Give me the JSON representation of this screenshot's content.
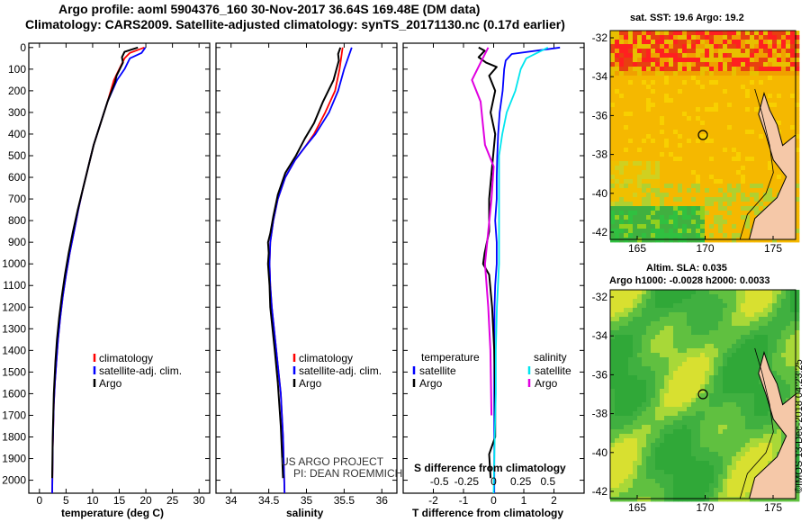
{
  "header": {
    "title_line1": "Argo profile: aoml 5904376_160 30-Nov-2017 36.64S 169.48E (DM data)",
    "title_line2": "Climatology: CARS2009. Satellite-adjusted climatology: synTS_20171130.nc (0.17d earlier)"
  },
  "colors": {
    "climatology": "#ff0000",
    "satellite": "#0000ff",
    "argo": "#000000",
    "sat_salinity": "#00e5ee",
    "argo_salinity": "#e000e0"
  },
  "chart_data": [
    {
      "type": "line",
      "id": "temperature",
      "xlabel": "temperature (deg C)",
      "ylabel": "",
      "xlim": [
        -2,
        32
      ],
      "ylim": [
        2060,
        -20
      ],
      "xticks": [
        "0",
        "5",
        "10",
        "15",
        "20",
        "25",
        "30"
      ],
      "xtick_values": [
        0,
        5,
        10,
        15,
        20,
        25,
        30
      ],
      "yticks": [
        "0",
        "100",
        "200",
        "300",
        "400",
        "500",
        "600",
        "700",
        "800",
        "900",
        "1000",
        "1100",
        "1200",
        "1300",
        "1400",
        "1500",
        "1600",
        "1700",
        "1800",
        "1900",
        "2000"
      ],
      "ytick_values": [
        0,
        100,
        200,
        300,
        400,
        500,
        600,
        700,
        800,
        900,
        1000,
        1100,
        1200,
        1300,
        1400,
        1500,
        1600,
        1700,
        1800,
        1900,
        2000
      ],
      "legend": [
        "climatology",
        "satellite-adj. clim.",
        "Argo"
      ],
      "series": [
        {
          "name": "climatology",
          "color": "#ff0000",
          "x": [
            19.7,
            17,
            16,
            15,
            14,
            12.8,
            11.5,
            10.2,
            9.2,
            8.2,
            7.3,
            6.5,
            5.7,
            5,
            4.4,
            3.9,
            3.5,
            3.2,
            2.9,
            2.7,
            2.5,
            2.4
          ],
          "y": [
            0,
            25,
            50,
            100,
            150,
            250,
            350,
            450,
            550,
            650,
            750,
            850,
            950,
            1050,
            1150,
            1250,
            1350,
            1450,
            1550,
            1650,
            1850,
            2060
          ]
        },
        {
          "name": "satellite-adj. clim.",
          "color": "#0000ff",
          "x": [
            19.9,
            19.2,
            17,
            16,
            14.6,
            12.8,
            11.5,
            10.2,
            9.2,
            8.2,
            7.3,
            6.5,
            5.7,
            5,
            4.4,
            3.9,
            3.5,
            3.2,
            2.9,
            2.7,
            2.5,
            2.4
          ],
          "y": [
            0,
            25,
            50,
            100,
            150,
            250,
            350,
            450,
            550,
            650,
            750,
            850,
            950,
            1050,
            1150,
            1250,
            1350,
            1450,
            1550,
            1650,
            1850,
            2060
          ]
        },
        {
          "name": "Argo",
          "color": "#000000",
          "x": [
            18.5,
            16,
            15.5,
            15.7,
            15.1,
            14.5,
            14.2,
            12.8,
            11.5,
            10.2,
            9.2,
            8.2,
            7.2,
            6.3,
            5.5,
            4.8,
            4.2,
            3.7,
            3.3,
            3,
            2.7,
            2.5,
            2.4
          ],
          "y": [
            0,
            20,
            45,
            70,
            100,
            130,
            160,
            250,
            350,
            450,
            550,
            650,
            750,
            850,
            950,
            1050,
            1150,
            1250,
            1350,
            1450,
            1600,
            1800,
            1990
          ]
        }
      ]
    },
    {
      "type": "line",
      "id": "salinity",
      "xlabel": "salinity",
      "xlim": [
        33.8,
        36.2
      ],
      "ylim": [
        2060,
        -20
      ],
      "xticks": [
        "34",
        "34.5",
        "35",
        "35.5",
        "36"
      ],
      "xtick_values": [
        34,
        34.5,
        35,
        35.5,
        36
      ],
      "legend": [
        "climatology",
        "satellite-adj. clim.",
        "Argo"
      ],
      "annotation": [
        "US ARGO PROJECT",
        "PI: DEAN ROEMMICH"
      ],
      "series": [
        {
          "name": "climatology",
          "color": "#ff0000",
          "x": [
            35.48,
            35.46,
            35.44,
            35.38,
            35.25,
            35.1,
            34.98,
            34.85,
            34.72,
            34.62,
            34.56,
            34.52,
            34.51,
            34.52,
            34.54,
            34.57,
            34.6,
            34.63,
            34.66,
            34.69,
            34.71
          ],
          "y": [
            0,
            50,
            100,
            200,
            300,
            400,
            460,
            520,
            600,
            700,
            800,
            900,
            1000,
            1100,
            1200,
            1300,
            1400,
            1500,
            1600,
            1800,
            2060
          ]
        },
        {
          "name": "satellite-adj. clim.",
          "color": "#0000ff",
          "x": [
            35.6,
            35.55,
            35.5,
            35.42,
            35.3,
            35.12,
            34.98,
            34.85,
            34.72,
            34.62,
            34.56,
            34.52,
            34.51,
            34.52,
            34.54,
            34.57,
            34.6,
            34.63,
            34.66,
            34.69,
            34.71
          ],
          "y": [
            0,
            50,
            100,
            200,
            300,
            400,
            460,
            520,
            600,
            700,
            800,
            900,
            1000,
            1100,
            1200,
            1300,
            1400,
            1500,
            1600,
            1800,
            2060
          ]
        },
        {
          "name": "Argo",
          "color": "#000000",
          "x": [
            35.45,
            35.42,
            35.43,
            35.36,
            35.22,
            35.1,
            34.98,
            34.86,
            34.72,
            34.62,
            34.56,
            34.52,
            34.49,
            34.5,
            34.49,
            34.51,
            34.52,
            34.55,
            34.58,
            34.62,
            34.66,
            34.69
          ],
          "y": [
            0,
            30,
            60,
            150,
            250,
            350,
            420,
            500,
            580,
            680,
            780,
            860,
            900,
            950,
            1000,
            1100,
            1200,
            1300,
            1400,
            1550,
            1750,
            1990
          ]
        }
      ]
    },
    {
      "type": "line",
      "id": "difference",
      "xlabel": "T difference from climatology",
      "xlabel_top": "S difference from climatology",
      "xlim": [
        -3,
        3
      ],
      "ylim": [
        2060,
        -20
      ],
      "xticks": [
        "-2",
        "-1",
        "0",
        "1",
        "2"
      ],
      "xtick_values": [
        -2,
        -1,
        0,
        1,
        2
      ],
      "sticks": [
        "-0.5",
        "-0.25",
        "0",
        "0.25",
        "0.5"
      ],
      "stick_values": [
        -0.5,
        -0.25,
        0,
        0.25,
        0.5
      ],
      "legend_left_title": "temperature",
      "legend_right_title": "salinity",
      "legend_left": [
        "satellite",
        "Argo"
      ],
      "legend_right": [
        "satellite",
        "Argo"
      ],
      "series": [
        {
          "name": "T satellite",
          "color": "#0000ff",
          "x": [
            2.2,
            0.6,
            0.4,
            0.35,
            0.3,
            0.2,
            0.15,
            0.12,
            0.1,
            0.1,
            0.05,
            0.1,
            0.1,
            0.05,
            0.03,
            0.02,
            0.02,
            0.02,
            0.02,
            0.02
          ],
          "y": [
            0,
            30,
            60,
            100,
            200,
            300,
            400,
            500,
            600,
            700,
            800,
            900,
            1000,
            1100,
            1200,
            1400,
            1600,
            1800,
            1950,
            2060
          ]
        },
        {
          "name": "T Argo",
          "color": "#000000",
          "x": [
            -0.5,
            -0.3,
            -0.5,
            -0.25,
            0.1,
            -0.15,
            0.05,
            -0.1,
            0.05,
            -0.05,
            -0.15,
            -0.15,
            -0.3,
            -0.35,
            -0.15,
            -0.05,
            0.02,
            0.05,
            0.05,
            -0.15,
            -0.1
          ],
          "y": [
            0,
            15,
            45,
            70,
            90,
            130,
            200,
            300,
            400,
            550,
            700,
            850,
            950,
            1000,
            1050,
            1200,
            1400,
            1600,
            1800,
            1880,
            1990
          ]
        },
        {
          "name": "S satellite",
          "color": "#00e5ee",
          "x": [
            0.5,
            0.3,
            0.25,
            0.2,
            0.12,
            0.08,
            0.05,
            0.05,
            0.05,
            0.05,
            0.03,
            0.02,
            0.02,
            0.01,
            0.0
          ],
          "y": [
            0,
            50,
            100,
            200,
            300,
            400,
            500,
            600,
            800,
            1000,
            1200,
            1400,
            1600,
            1800,
            2060
          ]
        },
        {
          "name": "S Argo",
          "color": "#e000e0",
          "x": [
            -0.05,
            -0.1,
            -0.2,
            -0.12,
            -0.1,
            -0.08,
            0.0,
            -0.02,
            -0.05,
            -0.08,
            -0.05,
            -0.03,
            -0.02
          ],
          "y": [
            0,
            50,
            150,
            250,
            350,
            450,
            550,
            700,
            850,
            1000,
            1200,
            1400,
            1700
          ]
        }
      ]
    }
  ],
  "maps": {
    "sst": {
      "title": "sat. SST: 19.6 Argo: 19.2",
      "yticks": [
        "-32",
        "-34",
        "-36",
        "-38",
        "-40",
        "-42"
      ],
      "xticks": [
        "165",
        "170",
        "175"
      ],
      "sst_argo": 19.2,
      "sst_sat": 19.6
    },
    "sla": {
      "title_line1": "Altim. SLA: 0.035",
      "title_line2": "Argo h1000: -0.0028 h2000: 0.0033",
      "yticks": [
        "-32",
        "-34",
        "-36",
        "-38",
        "-40",
        "-42"
      ],
      "xticks": [
        "165",
        "170",
        "175"
      ]
    }
  },
  "watermark": "©IMOS 13-Dec-2018 04:23:25"
}
